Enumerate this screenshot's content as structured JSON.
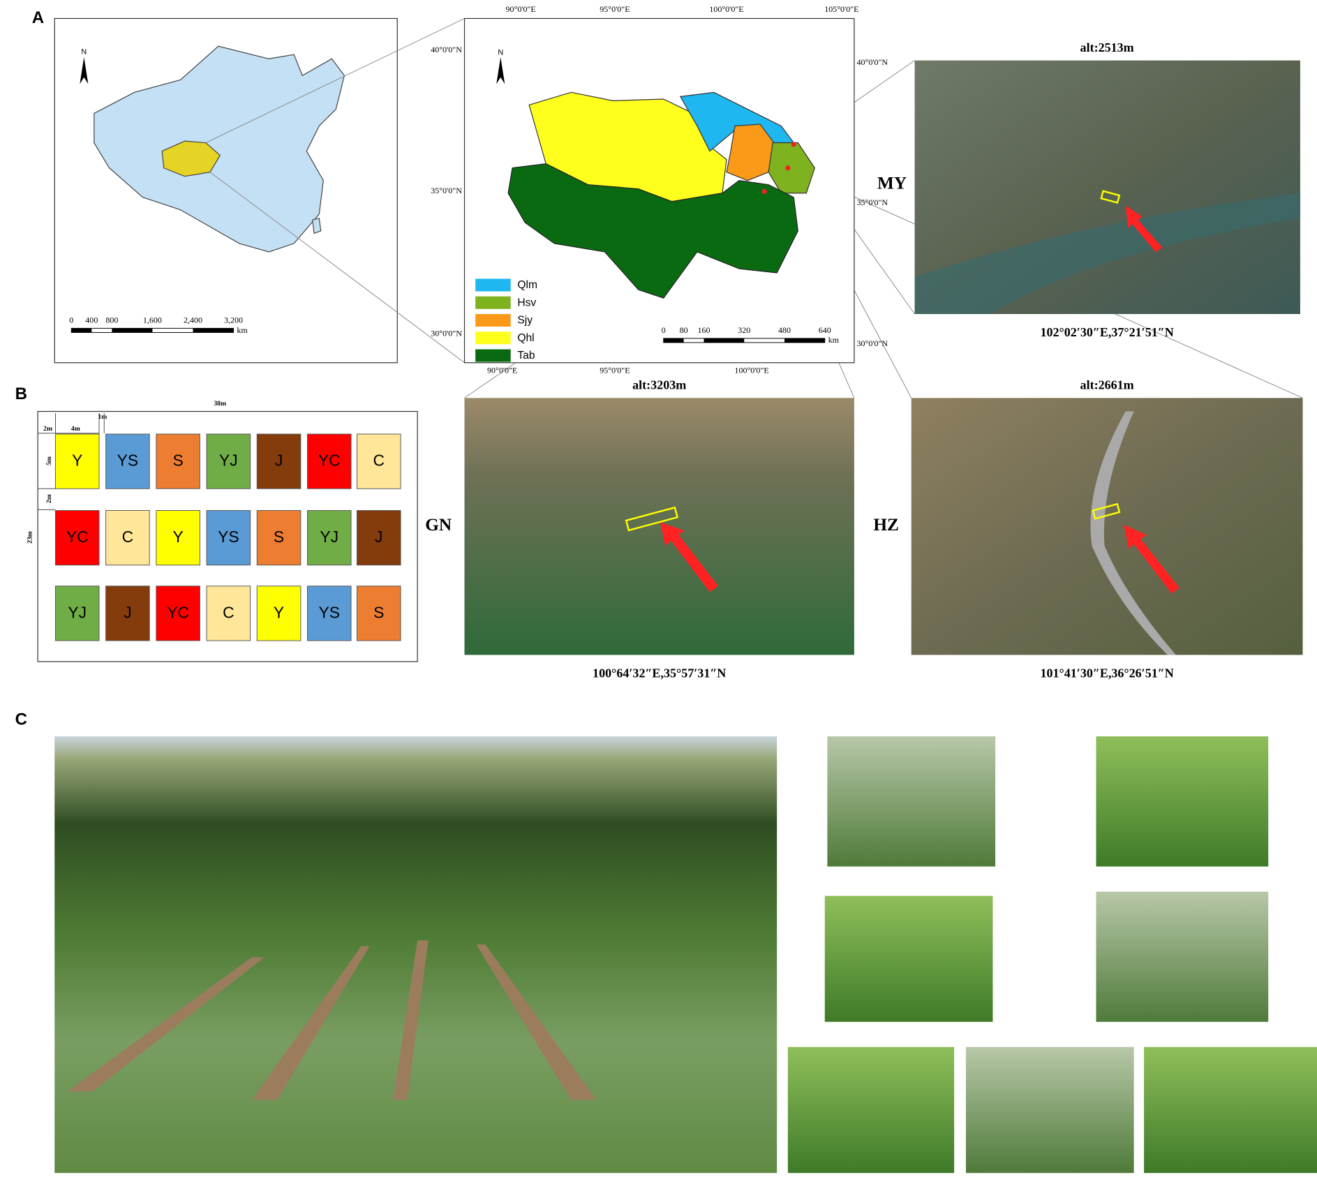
{
  "panels": {
    "a": "A",
    "b": "B",
    "c": "C"
  },
  "china_map": {
    "north": "N",
    "scale_labels": [
      "0",
      "400",
      "800",
      "1,600",
      "2,400",
      "3,200"
    ],
    "scale_unit": "km"
  },
  "qinghai_map": {
    "north": "N",
    "lon_labels_top": [
      "90°0'0\"E",
      "95°0'0\"E",
      "100°0'0\"E",
      "105°0'0\"E"
    ],
    "lon_labels_bottom": [
      "90°0'0\"E",
      "95°0'0\"E",
      "100°0'0\"E"
    ],
    "lat_labels_left": [
      "40°0'0\"N",
      "35°0'0\"N",
      "30°0'0\"N"
    ],
    "lat_labels_right": [
      "40°0'0\"N",
      "35°0'0\"N",
      "30°0'0\"N"
    ],
    "legend": [
      {
        "name": "Qlm",
        "color": "#1fb7f0"
      },
      {
        "name": "Hsv",
        "color": "#7fb21f"
      },
      {
        "name": "Sjy",
        "color": "#fa9a18"
      },
      {
        "name": "Qhl",
        "color": "#ffff1e"
      },
      {
        "name": "Tab",
        "color": "#0a6a12"
      }
    ],
    "scale_labels": [
      "0",
      "80",
      "160",
      "320",
      "480",
      "640"
    ],
    "scale_unit": "km"
  },
  "sites": [
    {
      "name": "MY",
      "alt": "alt:2513m",
      "coords": "102°02′30″E,37°21′51″N"
    },
    {
      "name": "GN",
      "alt": "alt:3203m",
      "coords": "100°64′32″E,35°57′31″N"
    },
    {
      "name": "HZ",
      "alt": "alt:2661m",
      "coords": "101°41′30″E,36°26′51″N"
    }
  ],
  "plot_layout": {
    "width": "38m",
    "gap_edge": "2m",
    "plot_width": "4m",
    "gap_plot": "1m",
    "plot_height": "5m",
    "gap_row": "2m",
    "height": "23m",
    "treatments": [
      {
        "code": "Y",
        "color": "#ffff00"
      },
      {
        "code": "YS",
        "color": "#5b9bd5"
      },
      {
        "code": "S",
        "color": "#ed7d31"
      },
      {
        "code": "YJ",
        "color": "#70ad47"
      },
      {
        "code": "J",
        "color": "#843c0c"
      },
      {
        "code": "YC",
        "color": "#ff0000"
      },
      {
        "code": "C",
        "color": "#ffe699"
      }
    ],
    "rows": [
      [
        "Y",
        "YS",
        "S",
        "YJ",
        "J",
        "YC",
        "C"
      ],
      [
        "YC",
        "C",
        "Y",
        "YS",
        "S",
        "YJ",
        "J"
      ],
      [
        "YJ",
        "J",
        "YC",
        "C",
        "Y",
        "YS",
        "S"
      ]
    ]
  }
}
